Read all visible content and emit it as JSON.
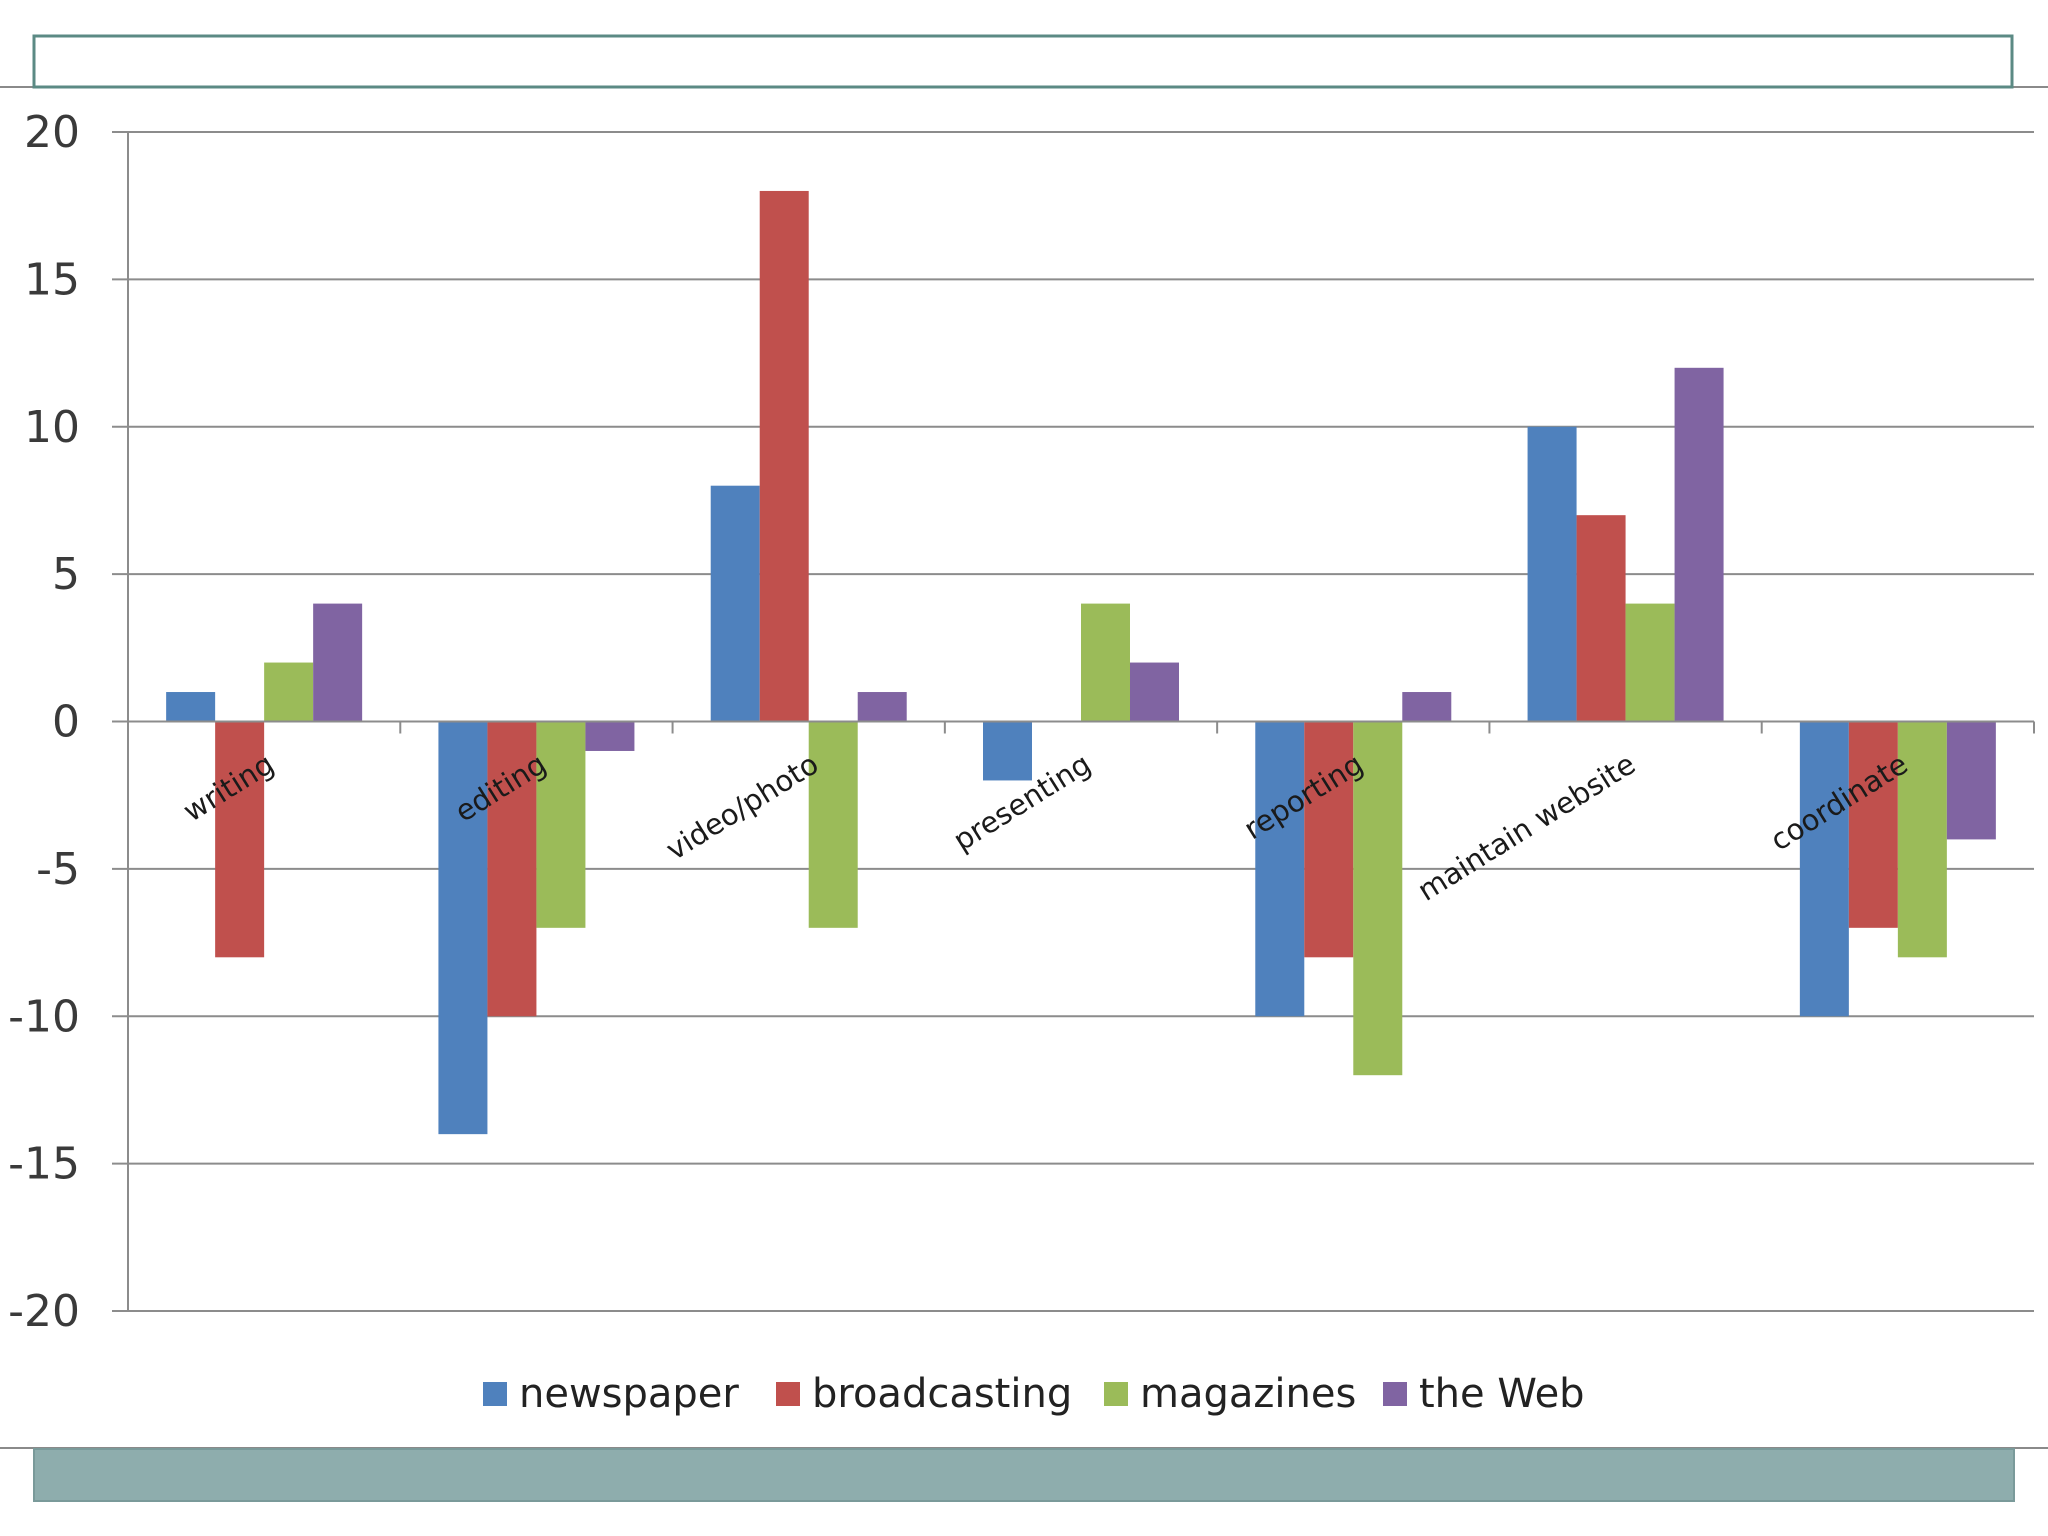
{
  "slide": {
    "title_box_color": "#5b8a84",
    "footer_bar_color": "#8eadad"
  },
  "chart_data": {
    "type": "bar",
    "categories": [
      "writing",
      "editing",
      "video/photo",
      "presenting",
      "reporting",
      "maintain website",
      "coordinate"
    ],
    "series": [
      {
        "name": "newspaper",
        "color": "#4f81bd",
        "values": [
          1,
          -14,
          8,
          -2,
          -10,
          10,
          -10
        ]
      },
      {
        "name": "broadcasting",
        "color": "#c0504d",
        "values": [
          -8,
          -10,
          18,
          0,
          -8,
          7,
          -7
        ]
      },
      {
        "name": "magazines",
        "color": "#9bbb59",
        "values": [
          2,
          -7,
          -7,
          4,
          -12,
          4,
          -8
        ]
      },
      {
        "name": "the Web",
        "color": "#8064a2",
        "values": [
          4,
          -1,
          1,
          2,
          1,
          12,
          -4
        ]
      }
    ],
    "ylim": [
      -20,
      20
    ],
    "yticks": [
      "20",
      "15",
      "10",
      "5",
      "0",
      "-5",
      "-10",
      "-15",
      "-20"
    ],
    "ytick_values": [
      20,
      15,
      10,
      5,
      0,
      -5,
      -10,
      -15,
      -20
    ],
    "grid": true,
    "legend_position": "bottom"
  }
}
